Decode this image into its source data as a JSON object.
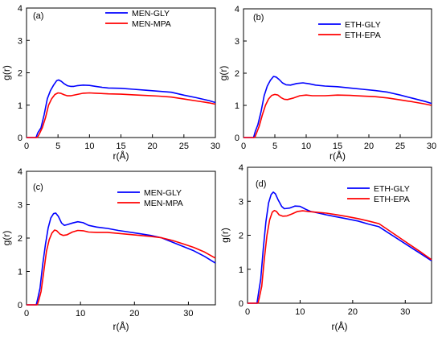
{
  "chart_data": [
    {
      "panel_label": "(a)",
      "type": "line",
      "xlabel": "r(Å)",
      "ylabel": "g(r)",
      "xlim": [
        0,
        30
      ],
      "ylim": [
        0,
        4
      ],
      "xticks": [
        0,
        5,
        10,
        15,
        20,
        25,
        30
      ],
      "yticks": [
        0,
        1,
        2,
        3,
        4
      ],
      "legend_position": "top-center",
      "series": [
        {
          "name": "MEN-GLY",
          "color": "#0000ff",
          "points": [
            [
              0,
              0
            ],
            [
              1.5,
              0
            ],
            [
              1.8,
              0.15
            ],
            [
              2.3,
              0.3
            ],
            [
              2.8,
              0.7
            ],
            [
              3.3,
              1.2
            ],
            [
              3.8,
              1.45
            ],
            [
              4.3,
              1.62
            ],
            [
              4.8,
              1.76
            ],
            [
              5.1,
              1.78
            ],
            [
              5.5,
              1.74
            ],
            [
              6.0,
              1.66
            ],
            [
              6.5,
              1.6
            ],
            [
              7.0,
              1.58
            ],
            [
              7.5,
              1.58
            ],
            [
              8.0,
              1.6
            ],
            [
              9.0,
              1.62
            ],
            [
              10.0,
              1.61
            ],
            [
              11.0,
              1.58
            ],
            [
              12.0,
              1.55
            ],
            [
              13.0,
              1.53
            ],
            [
              15.0,
              1.52
            ],
            [
              17.0,
              1.49
            ],
            [
              19.0,
              1.46
            ],
            [
              21.0,
              1.43
            ],
            [
              23.0,
              1.4
            ],
            [
              25.0,
              1.31
            ],
            [
              27.0,
              1.23
            ],
            [
              29.0,
              1.14
            ],
            [
              30.0,
              1.08
            ]
          ]
        },
        {
          "name": "MEN-MPA",
          "color": "#ff0000",
          "points": [
            [
              0,
              0
            ],
            [
              1.7,
              0
            ],
            [
              2.0,
              0.1
            ],
            [
              2.5,
              0.3
            ],
            [
              3.0,
              0.6
            ],
            [
              3.5,
              1.0
            ],
            [
              4.0,
              1.2
            ],
            [
              4.5,
              1.33
            ],
            [
              5.0,
              1.38
            ],
            [
              5.4,
              1.37
            ],
            [
              6.0,
              1.32
            ],
            [
              6.5,
              1.29
            ],
            [
              7.0,
              1.29
            ],
            [
              8.0,
              1.33
            ],
            [
              9.0,
              1.37
            ],
            [
              10.0,
              1.38
            ],
            [
              11.0,
              1.37
            ],
            [
              13.0,
              1.35
            ],
            [
              15.0,
              1.34
            ],
            [
              17.0,
              1.32
            ],
            [
              19.0,
              1.3
            ],
            [
              21.0,
              1.28
            ],
            [
              23.0,
              1.25
            ],
            [
              25.0,
              1.19
            ],
            [
              27.0,
              1.13
            ],
            [
              29.0,
              1.07
            ],
            [
              30.0,
              1.03
            ]
          ]
        }
      ]
    },
    {
      "panel_label": "(b)",
      "type": "line",
      "xlabel": "r(Å)",
      "ylabel": "g(r)",
      "xlim": [
        0,
        30
      ],
      "ylim": [
        0,
        4
      ],
      "xticks": [
        0,
        5,
        10,
        15,
        20,
        25,
        30
      ],
      "yticks": [
        0,
        1,
        2,
        3,
        4
      ],
      "legend_position": "top-center",
      "series": [
        {
          "name": "ETH-GLY",
          "color": "#0000ff",
          "points": [
            [
              0,
              0
            ],
            [
              1.6,
              0
            ],
            [
              1.9,
              0.2
            ],
            [
              2.3,
              0.4
            ],
            [
              2.8,
              0.8
            ],
            [
              3.3,
              1.3
            ],
            [
              3.8,
              1.6
            ],
            [
              4.3,
              1.78
            ],
            [
              4.8,
              1.9
            ],
            [
              5.2,
              1.88
            ],
            [
              5.7,
              1.8
            ],
            [
              6.2,
              1.7
            ],
            [
              6.8,
              1.64
            ],
            [
              7.5,
              1.63
            ],
            [
              8.5,
              1.68
            ],
            [
              9.5,
              1.7
            ],
            [
              10.5,
              1.67
            ],
            [
              11.5,
              1.63
            ],
            [
              13.0,
              1.6
            ],
            [
              15.0,
              1.58
            ],
            [
              17.0,
              1.54
            ],
            [
              19.0,
              1.5
            ],
            [
              21.0,
              1.46
            ],
            [
              23.0,
              1.41
            ],
            [
              25.0,
              1.32
            ],
            [
              27.0,
              1.22
            ],
            [
              29.0,
              1.12
            ],
            [
              30.0,
              1.06
            ]
          ]
        },
        {
          "name": "ETH-EPA",
          "color": "#ff0000",
          "points": [
            [
              0,
              0
            ],
            [
              1.8,
              0
            ],
            [
              2.1,
              0.15
            ],
            [
              2.5,
              0.35
            ],
            [
              3.0,
              0.7
            ],
            [
              3.5,
              1.0
            ],
            [
              4.0,
              1.2
            ],
            [
              4.5,
              1.31
            ],
            [
              5.0,
              1.34
            ],
            [
              5.5,
              1.32
            ],
            [
              6.0,
              1.24
            ],
            [
              6.5,
              1.19
            ],
            [
              7.0,
              1.18
            ],
            [
              8.0,
              1.23
            ],
            [
              9.0,
              1.3
            ],
            [
              10.0,
              1.32
            ],
            [
              11.0,
              1.3
            ],
            [
              13.0,
              1.3
            ],
            [
              15.0,
              1.32
            ],
            [
              17.0,
              1.31
            ],
            [
              19.0,
              1.29
            ],
            [
              21.0,
              1.27
            ],
            [
              23.0,
              1.23
            ],
            [
              25.0,
              1.17
            ],
            [
              27.0,
              1.11
            ],
            [
              29.0,
              1.04
            ],
            [
              30.0,
              1.0
            ]
          ]
        }
      ]
    },
    {
      "panel_label": "(c)",
      "type": "line",
      "xlabel": "r(Å)",
      "ylabel": "g(r)",
      "xlim": [
        0,
        35
      ],
      "ylim": [
        0,
        4
      ],
      "xticks": [
        0,
        10,
        20,
        30
      ],
      "yticks": [
        0,
        1,
        2,
        3,
        4
      ],
      "legend_position": "top-center",
      "series": [
        {
          "name": "MEN-GLY",
          "color": "#0000ff",
          "points": [
            [
              0,
              0
            ],
            [
              1.8,
              0
            ],
            [
              2.1,
              0.2
            ],
            [
              2.5,
              0.5
            ],
            [
              3.0,
              1.2
            ],
            [
              3.5,
              1.8
            ],
            [
              4.0,
              2.3
            ],
            [
              4.5,
              2.6
            ],
            [
              5.0,
              2.73
            ],
            [
              5.4,
              2.75
            ],
            [
              5.9,
              2.65
            ],
            [
              6.5,
              2.45
            ],
            [
              7.0,
              2.38
            ],
            [
              7.5,
              2.4
            ],
            [
              8.5,
              2.45
            ],
            [
              9.5,
              2.49
            ],
            [
              10.5,
              2.46
            ],
            [
              11.5,
              2.38
            ],
            [
              13.0,
              2.33
            ],
            [
              15.0,
              2.29
            ],
            [
              17.0,
              2.23
            ],
            [
              19.0,
              2.18
            ],
            [
              21.0,
              2.13
            ],
            [
              23.0,
              2.08
            ],
            [
              25.0,
              2.01
            ],
            [
              27.0,
              1.88
            ],
            [
              29.0,
              1.75
            ],
            [
              31.0,
              1.62
            ],
            [
              33.0,
              1.45
            ],
            [
              35.0,
              1.25
            ]
          ]
        },
        {
          "name": "MEN-MPA",
          "color": "#ff0000",
          "points": [
            [
              0,
              0
            ],
            [
              2.0,
              0
            ],
            [
              2.3,
              0.15
            ],
            [
              2.7,
              0.4
            ],
            [
              3.2,
              1.0
            ],
            [
              3.7,
              1.6
            ],
            [
              4.2,
              1.95
            ],
            [
              4.7,
              2.15
            ],
            [
              5.2,
              2.24
            ],
            [
              5.6,
              2.22
            ],
            [
              6.2,
              2.12
            ],
            [
              6.8,
              2.08
            ],
            [
              7.5,
              2.1
            ],
            [
              8.5,
              2.18
            ],
            [
              9.5,
              2.23
            ],
            [
              10.5,
              2.22
            ],
            [
              11.5,
              2.18
            ],
            [
              13.0,
              2.17
            ],
            [
              15.0,
              2.17
            ],
            [
              17.0,
              2.14
            ],
            [
              19.0,
              2.11
            ],
            [
              21.0,
              2.08
            ],
            [
              23.0,
              2.05
            ],
            [
              25.0,
              2.01
            ],
            [
              27.0,
              1.93
            ],
            [
              29.0,
              1.83
            ],
            [
              31.0,
              1.72
            ],
            [
              33.0,
              1.58
            ],
            [
              35.0,
              1.4
            ]
          ]
        }
      ]
    },
    {
      "panel_label": "(d)",
      "type": "line",
      "xlabel": "r(Å)",
      "ylabel": "g(r)",
      "xlim": [
        0,
        35
      ],
      "ylim": [
        0,
        4
      ],
      "xticks": [
        0,
        10,
        20,
        30
      ],
      "yticks": [
        0,
        1,
        2,
        3,
        4
      ],
      "legend_position": "top-center",
      "series": [
        {
          "name": "ETH-GLY",
          "color": "#0000ff",
          "points": [
            [
              0,
              0
            ],
            [
              1.8,
              0
            ],
            [
              2.1,
              0.3
            ],
            [
              2.5,
              0.7
            ],
            [
              3.0,
              1.6
            ],
            [
              3.5,
              2.4
            ],
            [
              4.0,
              2.95
            ],
            [
              4.5,
              3.2
            ],
            [
              4.9,
              3.27
            ],
            [
              5.3,
              3.22
            ],
            [
              5.8,
              3.05
            ],
            [
              6.5,
              2.85
            ],
            [
              7.0,
              2.78
            ],
            [
              8.0,
              2.8
            ],
            [
              9.0,
              2.86
            ],
            [
              10.0,
              2.85
            ],
            [
              11.0,
              2.77
            ],
            [
              12.0,
              2.7
            ],
            [
              13.0,
              2.67
            ],
            [
              15.0,
              2.6
            ],
            [
              17.0,
              2.54
            ],
            [
              19.0,
              2.48
            ],
            [
              21.0,
              2.42
            ],
            [
              23.0,
              2.33
            ],
            [
              25.0,
              2.25
            ],
            [
              27.0,
              2.05
            ],
            [
              29.0,
              1.85
            ],
            [
              31.0,
              1.65
            ],
            [
              33.0,
              1.45
            ],
            [
              35.0,
              1.25
            ]
          ]
        },
        {
          "name": "ETH-EPA",
          "color": "#ff0000",
          "points": [
            [
              0,
              0
            ],
            [
              2.0,
              0
            ],
            [
              2.3,
              0.2
            ],
            [
              2.7,
              0.5
            ],
            [
              3.2,
              1.3
            ],
            [
              3.7,
              2.0
            ],
            [
              4.2,
              2.45
            ],
            [
              4.7,
              2.68
            ],
            [
              5.1,
              2.73
            ],
            [
              5.5,
              2.7
            ],
            [
              6.0,
              2.6
            ],
            [
              6.7,
              2.56
            ],
            [
              7.5,
              2.57
            ],
            [
              8.5,
              2.63
            ],
            [
              9.5,
              2.7
            ],
            [
              10.5,
              2.72
            ],
            [
              11.5,
              2.7
            ],
            [
              13.0,
              2.68
            ],
            [
              15.0,
              2.65
            ],
            [
              17.0,
              2.6
            ],
            [
              19.0,
              2.55
            ],
            [
              21.0,
              2.49
            ],
            [
              23.0,
              2.42
            ],
            [
              25.0,
              2.34
            ],
            [
              27.0,
              2.13
            ],
            [
              29.0,
              1.92
            ],
            [
              31.0,
              1.71
            ],
            [
              33.0,
              1.5
            ],
            [
              35.0,
              1.28
            ]
          ]
        }
      ]
    }
  ]
}
